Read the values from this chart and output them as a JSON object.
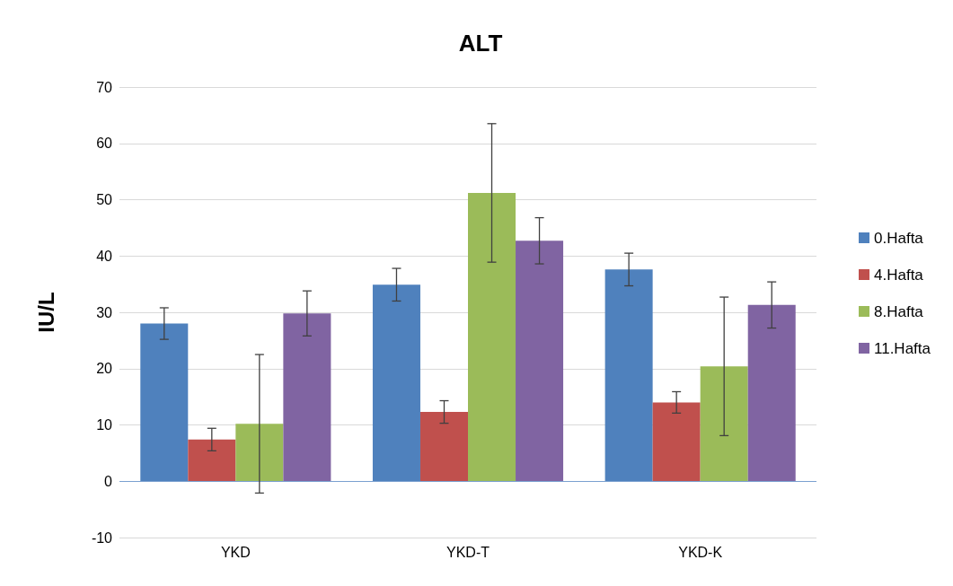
{
  "chart_data": {
    "type": "bar",
    "title": "ALT",
    "ylabel": "IU/L",
    "categories": [
      "YKD",
      "YKD-T",
      "YKD-K"
    ],
    "series": [
      {
        "name": "0.Hafta",
        "color": "#4f81bd",
        "values": [
          28.0,
          34.9,
          37.6
        ],
        "errors": [
          2.8,
          2.9,
          2.9
        ]
      },
      {
        "name": "4.Hafta",
        "color": "#c0504d",
        "values": [
          7.4,
          12.3,
          14.0
        ],
        "errors": [
          2.0,
          2.0,
          1.9
        ]
      },
      {
        "name": "8.Hafta",
        "color": "#9bbb59",
        "values": [
          10.2,
          51.2,
          20.4
        ],
        "errors": [
          12.3,
          12.3,
          12.3
        ]
      },
      {
        "name": "11.Hafta",
        "color": "#8064a2",
        "values": [
          29.8,
          42.7,
          31.3
        ],
        "errors": [
          4.0,
          4.1,
          4.1
        ]
      }
    ],
    "ylim": [
      -10,
      70
    ],
    "yticks": [
      -10,
      0,
      10,
      20,
      30,
      40,
      50,
      60,
      70
    ],
    "grid": "y",
    "legend": "right",
    "ref_lines": [
      {
        "axis": "y",
        "value": 0,
        "color": "#7aa0d0"
      }
    ]
  }
}
